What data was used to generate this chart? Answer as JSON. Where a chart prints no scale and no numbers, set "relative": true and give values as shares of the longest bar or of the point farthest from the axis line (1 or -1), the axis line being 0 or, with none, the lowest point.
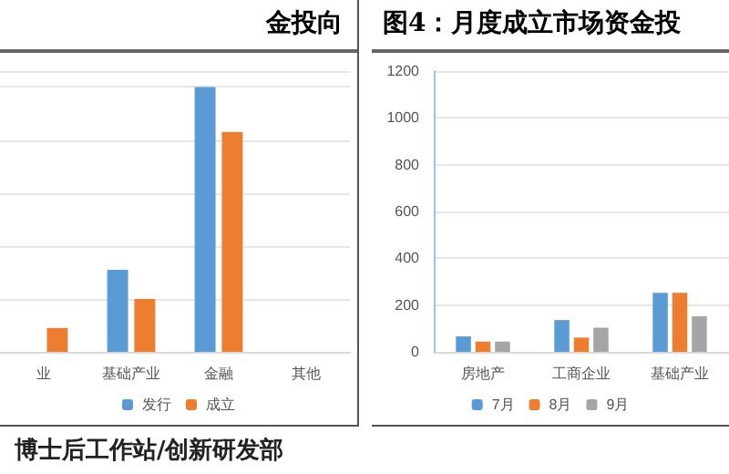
{
  "chart_data": [
    {
      "type": "bar",
      "title": "金投向",
      "categories": [
        "业",
        "基础产业",
        "金融",
        "其他"
      ],
      "relative": true,
      "series": [
        {
          "name": "发行",
          "color": "#5b9bd5",
          "values": [
            null,
            0.31,
            1,
            0
          ]
        },
        {
          "name": "成立",
          "color": "#ed7d31",
          "values": [
            0.09,
            0.2,
            0.83,
            0
          ]
        }
      ],
      "grid": "y",
      "legend": "bottom",
      "tick_labels": "x",
      "annotations": [
        "博士后工作站/创新研发部"
      ]
    },
    {
      "type": "bar",
      "title": "图4：月度成立市场资金投",
      "categories": [
        "房地产",
        "工商企业",
        "基础产业"
      ],
      "series": [
        {
          "name": "7月",
          "color": "#5b9bd5",
          "values": [
            66,
            136,
            252
          ]
        },
        {
          "name": "8月",
          "color": "#ed7d31",
          "values": [
            44,
            61,
            252
          ]
        },
        {
          "name": "9月",
          "color": "#a5a5a5",
          "values": [
            44,
            103,
            152
          ]
        }
      ],
      "ylim": [
        0,
        1200
      ],
      "yticks": [
        0,
        200,
        400,
        600,
        800,
        1000,
        1200
      ],
      "grid": "y",
      "legend": "bottom"
    }
  ]
}
